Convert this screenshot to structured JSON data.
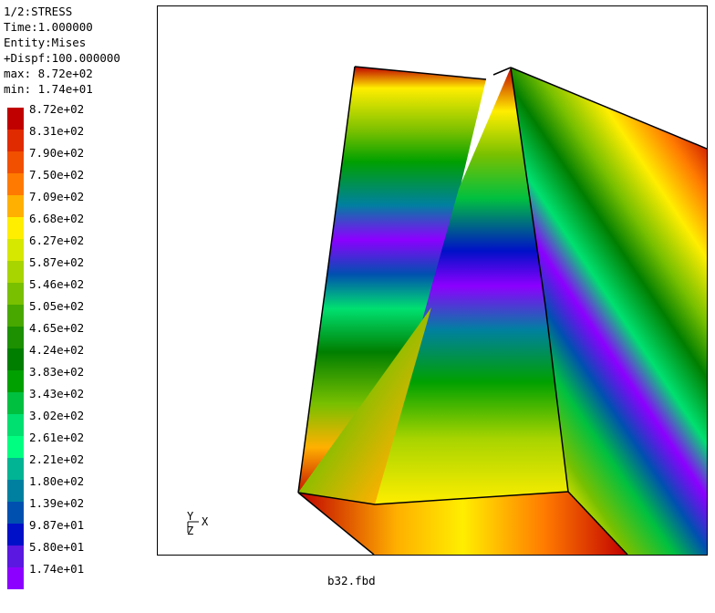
{
  "header": {
    "dataset": "1/2:STRESS",
    "time": "Time:1.000000",
    "entity": "Entity:Mises",
    "dispf": "+Dispf:100.000000",
    "max": "max: 8.72e+02",
    "min": "min: 1.74e+01"
  },
  "legend": {
    "entries": [
      {
        "label": "8.72e+02",
        "color": "#c00000"
      },
      {
        "label": "8.31e+02",
        "color": "#e02a00"
      },
      {
        "label": "7.90e+02",
        "color": "#f05000"
      },
      {
        "label": "7.50e+02",
        "color": "#ff7a00"
      },
      {
        "label": "7.09e+02",
        "color": "#ffb000"
      },
      {
        "label": "6.68e+02",
        "color": "#ffee00"
      },
      {
        "label": "6.27e+02",
        "color": "#d6e800"
      },
      {
        "label": "5.87e+02",
        "color": "#a8d400"
      },
      {
        "label": "5.46e+02",
        "color": "#78c000"
      },
      {
        "label": "5.05e+02",
        "color": "#48a800"
      },
      {
        "label": "4.65e+02",
        "color": "#1c9000"
      },
      {
        "label": "4.24e+02",
        "color": "#007e00"
      },
      {
        "label": "3.83e+02",
        "color": "#00a000"
      },
      {
        "label": "3.43e+02",
        "color": "#00c040"
      },
      {
        "label": "3.02e+02",
        "color": "#00e070"
      },
      {
        "label": "2.61e+02",
        "color": "#00ff80"
      },
      {
        "label": "2.21e+02",
        "color": "#00b494"
      },
      {
        "label": "1.80e+02",
        "color": "#0080a0"
      },
      {
        "label": "1.39e+02",
        "color": "#0050b0"
      },
      {
        "label": "9.87e+01",
        "color": "#0010c8"
      },
      {
        "label": "5.80e+01",
        "color": "#5a18e0"
      },
      {
        "label": "1.74e+01",
        "color": "#8c00ff"
      }
    ]
  },
  "axes": {
    "y": "Y",
    "x": "X",
    "z": "Z"
  },
  "file_name": "b32.fbd"
}
